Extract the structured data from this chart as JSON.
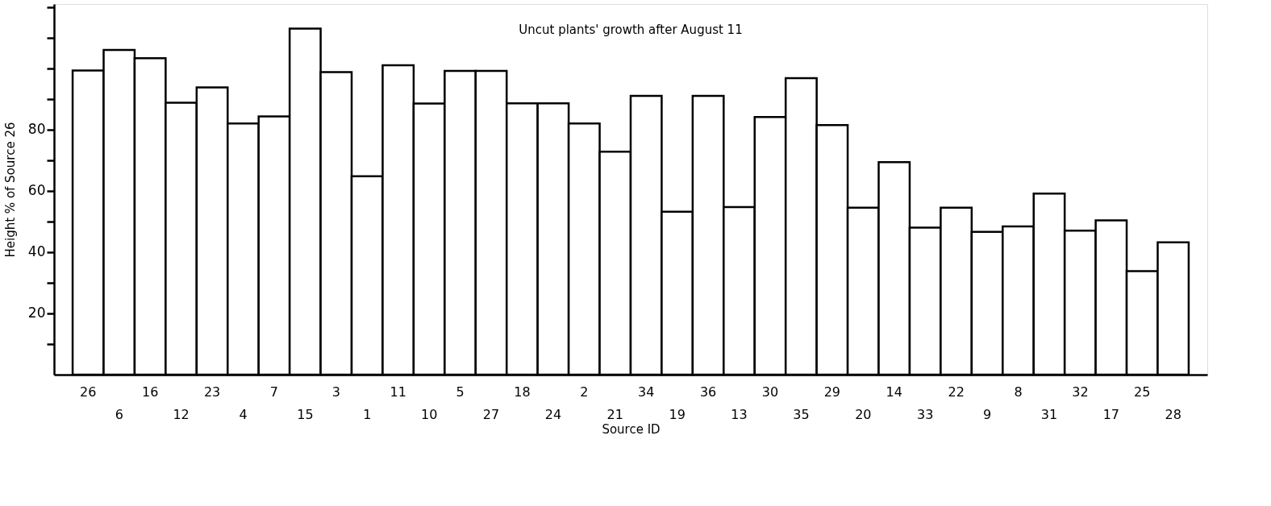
{
  "chart_data": {
    "type": "bar",
    "title": "Uncut plants' growth after August 11",
    "xlabel": "Source ID",
    "ylabel": "Height % of Source 26",
    "categories": [
      "26",
      "6",
      "16",
      "12",
      "23",
      "4",
      "7",
      "15",
      "3",
      "1",
      "11",
      "10",
      "5",
      "27",
      "18",
      "24",
      "2",
      "21",
      "34",
      "19",
      "36",
      "13",
      "30",
      "35",
      "29",
      "20",
      "14",
      "33",
      "22",
      "9",
      "8",
      "31",
      "32",
      "17",
      "25",
      "28"
    ],
    "values": [
      99.3,
      106,
      103.3,
      88.8,
      93.8,
      82,
      84.3,
      113,
      98.8,
      64.8,
      101,
      88.5,
      99.2,
      99.2,
      88.6,
      88.6,
      82,
      72.8,
      91,
      53.2,
      91,
      54.7,
      84.1,
      96.8,
      81.5,
      54.5,
      69.4,
      48,
      54.5,
      46.6,
      48.4,
      59.1,
      47,
      50.4,
      33.8,
      43.2
    ],
    "color": "#ffffff",
    "ylim": [
      0,
      121
    ],
    "yticks": [
      {
        "value": 10,
        "label": null
      },
      20,
      {
        "value": 30,
        "label": null
      },
      40,
      {
        "value": 50,
        "label": null
      },
      60,
      {
        "value": 70,
        "label": null
      },
      80,
      {
        "value": 90,
        "label": null
      },
      {
        "value": 100,
        "label": null
      },
      {
        "value": 110,
        "label": null
      },
      {
        "value": 120,
        "label": null
      }
    ],
    "grid": false
  }
}
